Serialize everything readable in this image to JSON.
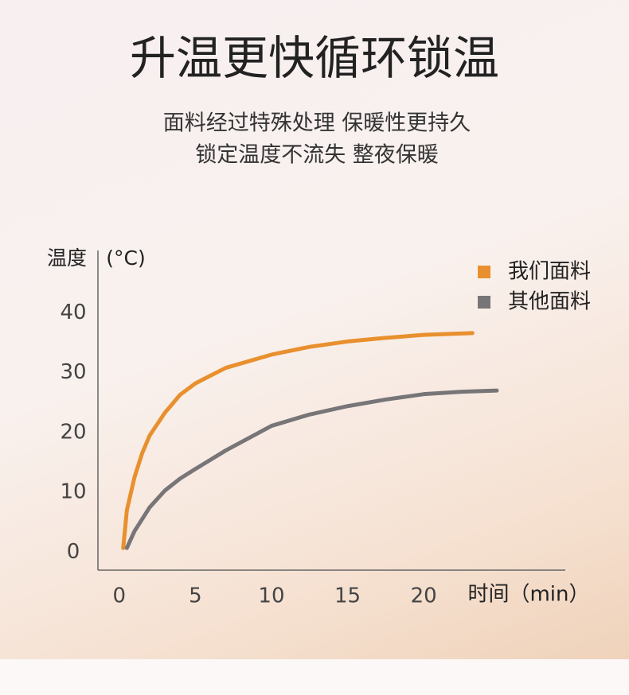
{
  "chart_data": {
    "type": "line",
    "title": "升温更快循环锁温",
    "subtitle": [
      "面料经过特殊处理 保暖性更持久",
      "锁定温度不流失 整夜保暖"
    ],
    "y_label": "温度",
    "y_unit": "(°C)",
    "x_label": "时间（min）",
    "xlim": [
      -1.4,
      29.3
    ],
    "xticks": [
      0,
      5,
      10,
      15,
      20
    ],
    "ylim": [
      -3,
      50
    ],
    "yticks": [
      0,
      10,
      20,
      30,
      40
    ],
    "legend": "top-right",
    "series": [
      {
        "name": "我们面料",
        "color": "#e8902e",
        "x": [
          0.26,
          0.5,
          1,
          1.5,
          2,
          3,
          4,
          5,
          7,
          10,
          12.5,
          15,
          17.5,
          20,
          23.2
        ],
        "values": [
          0.7,
          7,
          12.5,
          16.5,
          19.5,
          23.3,
          26.3,
          28.2,
          30.8,
          33,
          34.3,
          35.2,
          35.8,
          36.3,
          36.6
        ]
      },
      {
        "name": "其他面料",
        "color": "#777577",
        "x": [
          0.5,
          1,
          2,
          3,
          4,
          5,
          7,
          10,
          12.5,
          15,
          17.5,
          20,
          22.5,
          24.8
        ],
        "values": [
          0.7,
          3.5,
          7.5,
          10.3,
          12.3,
          13.9,
          17,
          21.1,
          23,
          24.4,
          25.5,
          26.4,
          26.8,
          27
        ]
      }
    ]
  }
}
